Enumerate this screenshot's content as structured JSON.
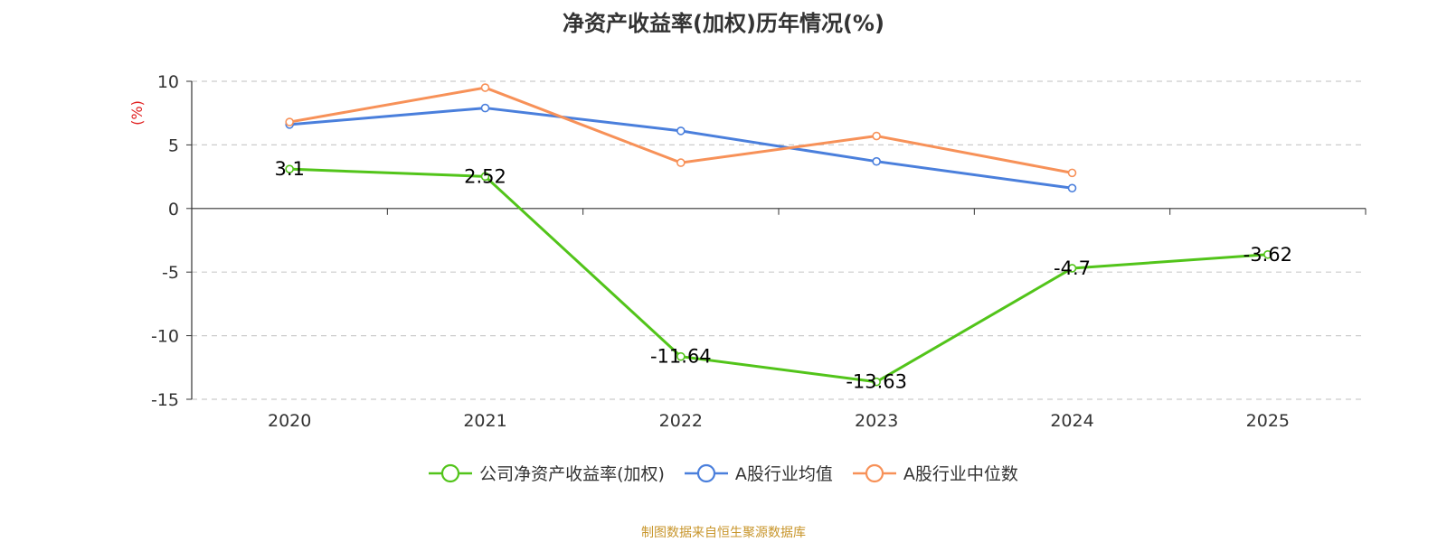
{
  "chart_data": {
    "type": "line",
    "title": "净资产收益率(加权)历年情况(%)",
    "ylabel": "(%)",
    "ylim": [
      -15,
      10
    ],
    "yticks": [
      10,
      5,
      0,
      -5,
      -10,
      -15
    ],
    "categories": [
      "2020",
      "2021",
      "2022",
      "2023",
      "2024",
      "2025"
    ],
    "grid": true,
    "legend_position": "bottom",
    "series": [
      {
        "name": "公司净资产收益率(加权)",
        "color": "#52c41a",
        "values": [
          3.1,
          2.52,
          -11.64,
          -13.63,
          -4.7,
          -3.62
        ],
        "labels": [
          "3.1",
          "2.52",
          "-11.64",
          "-13.63",
          "-4.7",
          "-3.62"
        ]
      },
      {
        "name": "A股行业均值",
        "color": "#4a7fdc",
        "values": [
          6.6,
          7.9,
          6.1,
          3.7,
          1.6,
          null
        ]
      },
      {
        "name": "A股行业中位数",
        "color": "#f79158",
        "values": [
          6.8,
          9.5,
          3.6,
          5.7,
          2.8,
          null
        ]
      }
    ]
  },
  "ylabel_color": "#e02020",
  "source": "制图数据来自恒生聚源数据库"
}
